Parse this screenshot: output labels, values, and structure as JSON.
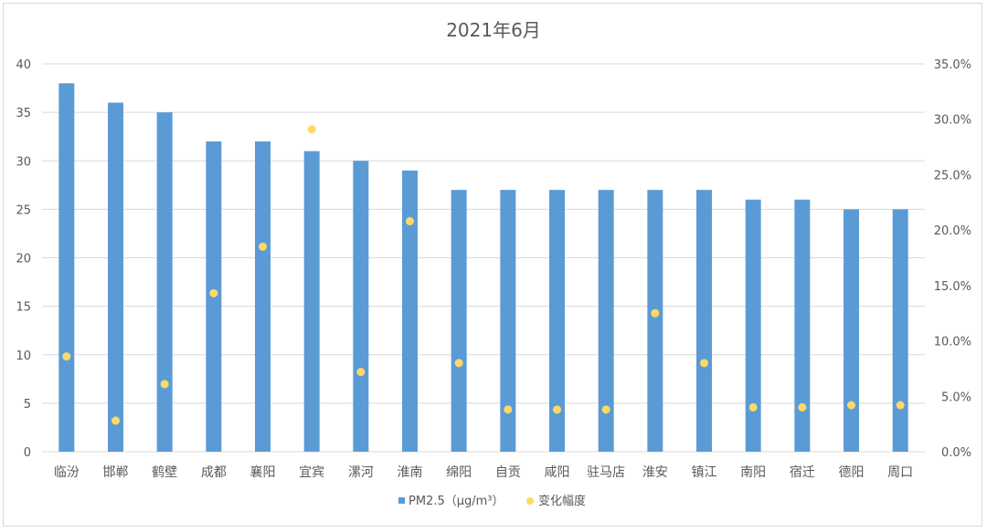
{
  "chart_data": {
    "type": "bar",
    "title": "2021年6月",
    "categories": [
      "临汾",
      "邯郸",
      "鹤壁",
      "成都",
      "襄阳",
      "宜宾",
      "漯河",
      "淮南",
      "绵阳",
      "自贡",
      "咸阳",
      "驻马店",
      "淮安",
      "镇江",
      "南阳",
      "宿迁",
      "德阳",
      "周口"
    ],
    "series": [
      {
        "name": "PM2.5（μg/m³）",
        "type": "bar",
        "axis": "left",
        "color": "#5b9bd5",
        "values": [
          38,
          36,
          35,
          32,
          32,
          31,
          30,
          29,
          27,
          27,
          27,
          27,
          27,
          27,
          26,
          26,
          25,
          25
        ]
      },
      {
        "name": "变化幅度",
        "type": "scatter",
        "axis": "right",
        "color": "#ffd966",
        "values": [
          0.086,
          0.028,
          0.061,
          0.143,
          0.185,
          0.291,
          0.072,
          0.208,
          0.08,
          0.038,
          0.038,
          0.038,
          0.125,
          0.08,
          0.04,
          0.04,
          0.042,
          0.042
        ]
      }
    ],
    "y_left": {
      "ylim": [
        0,
        40
      ],
      "ticks": [
        "0",
        "5",
        "10",
        "15",
        "20",
        "25",
        "30",
        "35",
        "40"
      ]
    },
    "y_right": {
      "ylim": [
        0,
        0.35
      ],
      "ticks": [
        "0.0%",
        "5.0%",
        "10.0%",
        "15.0%",
        "20.0%",
        "25.0%",
        "30.0%",
        "35.0%"
      ]
    },
    "grid": true,
    "legend_position": "bottom"
  }
}
